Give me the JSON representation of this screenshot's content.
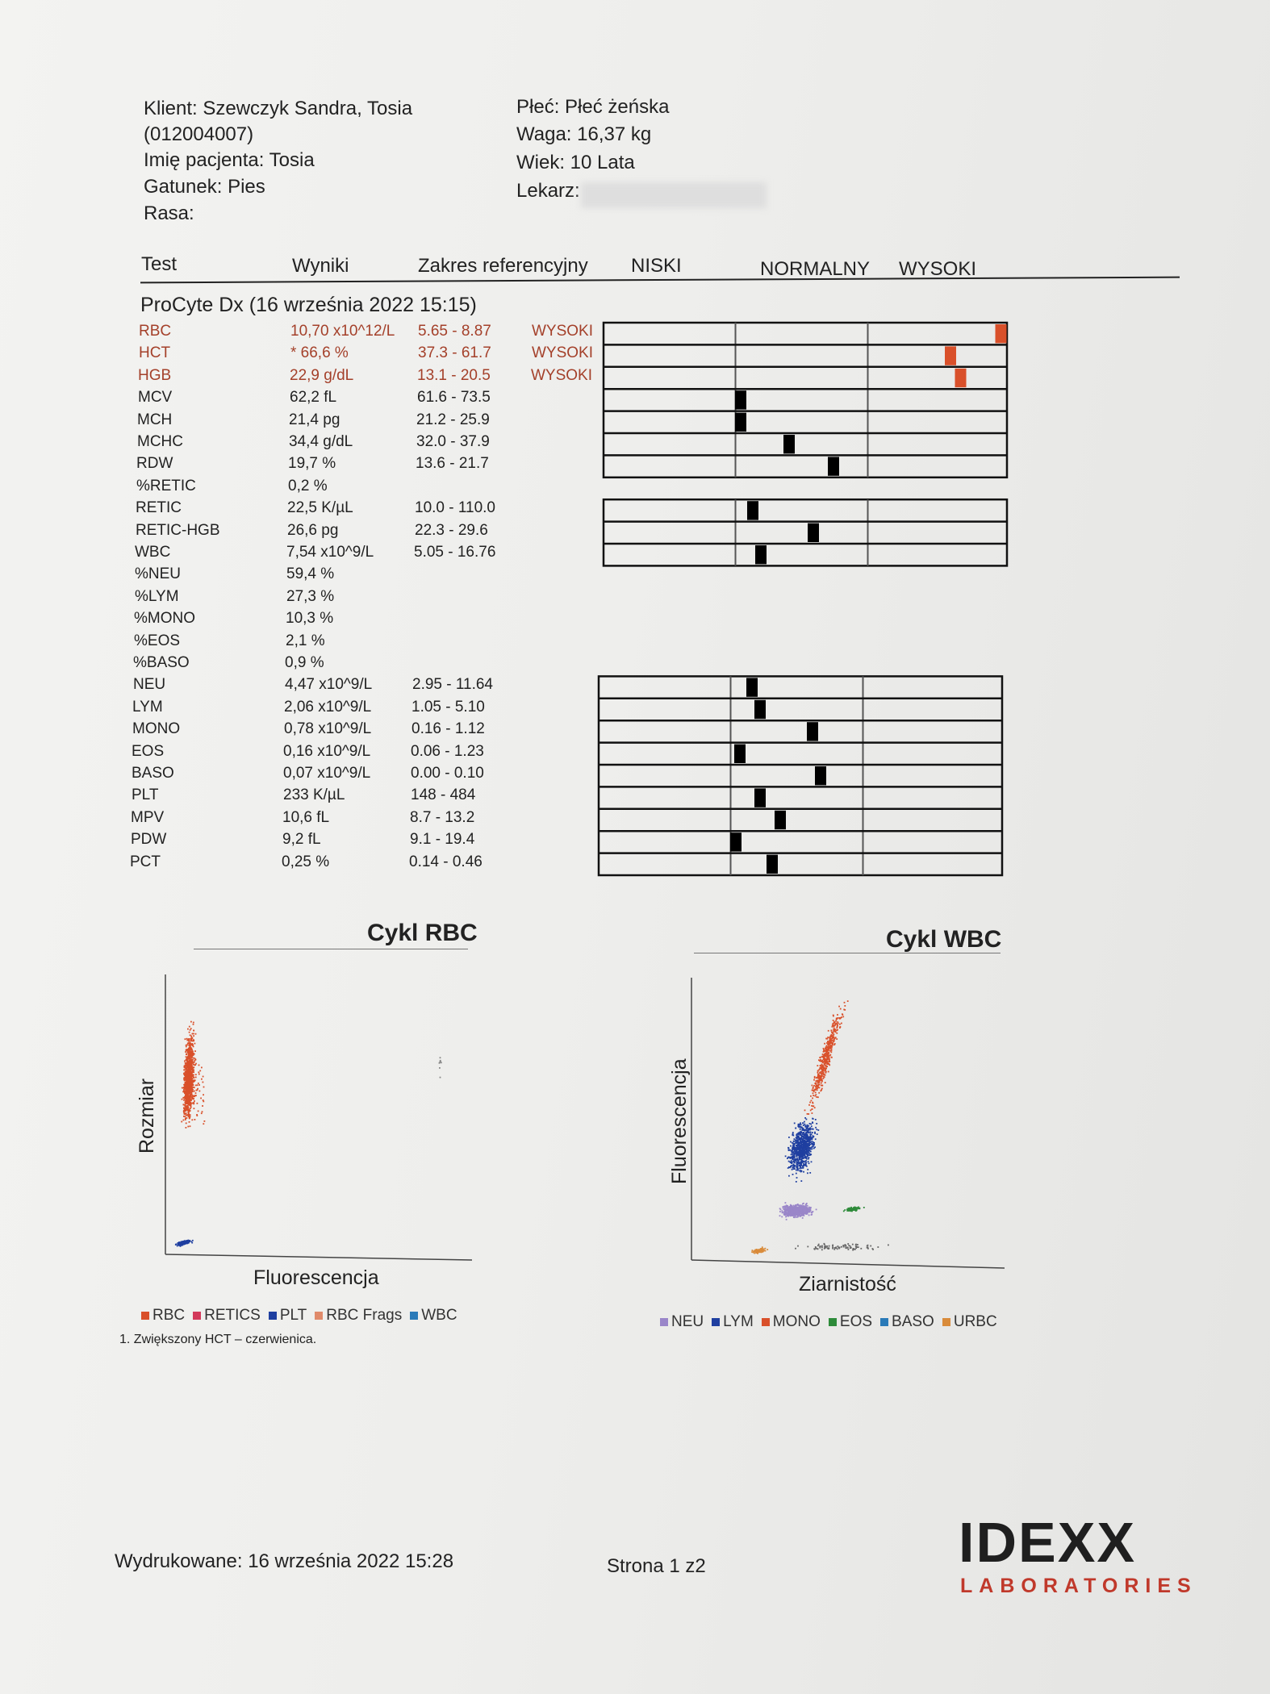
{
  "header": {
    "client": "Klient: Szewczyk Sandra, Tosia",
    "client_id": "(012004007)",
    "patient": "Imię pacjenta: Tosia",
    "species": "Gatunek: Pies",
    "breed": "Rasa:",
    "sex": "Płeć: Płeć żeńska",
    "weight": "Waga: 16,37 kg",
    "age": "Wiek: 10 Lata",
    "doctor": "Lekarz:"
  },
  "columns": {
    "test": "Test",
    "results": "Wyniki",
    "range": "Zakres referencyjny",
    "low": "NISKI",
    "normal": "NORMALNY",
    "high": "WYSOKI"
  },
  "section_title": "ProCyte Dx (16 września 2022 15:15)",
  "results": [
    {
      "test": "RBC",
      "value": "10,70 x10^12/L",
      "range": "5.65 - 8.87",
      "flag": "WYSOKI",
      "bar": 0.985
    },
    {
      "test": "HCT",
      "value": "* 66,6 %",
      "range": "37.3 - 61.7",
      "flag": "WYSOKI",
      "bar": 0.86
    },
    {
      "test": "HGB",
      "value": "22,9 g/dL",
      "range": "13.1 - 20.5",
      "flag": "WYSOKI",
      "bar": 0.885
    },
    {
      "test": "MCV",
      "value": "62,2 fL",
      "range": "61.6 - 73.5",
      "flag": "",
      "bar": 0.34
    },
    {
      "test": "MCH",
      "value": "21,4 pg",
      "range": "21.2 - 25.9",
      "flag": "",
      "bar": 0.34
    },
    {
      "test": "MCHC",
      "value": "34,4 g/dL",
      "range": "32.0 - 37.9",
      "flag": "",
      "bar": 0.46
    },
    {
      "test": "RDW",
      "value": "19,7 %",
      "range": "13.6 - 21.7",
      "flag": "",
      "bar": 0.57
    },
    {
      "test": "%RETIC",
      "value": "0,2 %",
      "range": "",
      "flag": "",
      "bar": null
    },
    {
      "test": "RETIC",
      "value": "22,5 K/µL",
      "range": "10.0 - 110.0",
      "flag": "",
      "bar": 0.37
    },
    {
      "test": "RETIC-HGB",
      "value": "26,6 pg",
      "range": "22.3 - 29.6",
      "flag": "",
      "bar": 0.52
    },
    {
      "test": "WBC",
      "value": "7,54 x10^9/L",
      "range": "5.05 - 16.76",
      "flag": "",
      "bar": 0.39
    },
    {
      "test": "%NEU",
      "value": "59,4 %",
      "range": "",
      "flag": "",
      "bar": null
    },
    {
      "test": "%LYM",
      "value": "27,3 %",
      "range": "",
      "flag": "",
      "bar": null
    },
    {
      "test": "%MONO",
      "value": "10,3 %",
      "range": "",
      "flag": "",
      "bar": null
    },
    {
      "test": "%EOS",
      "value": "2,1 %",
      "range": "",
      "flag": "",
      "bar": null
    },
    {
      "test": "%BASO",
      "value": "0,9 %",
      "range": "",
      "flag": "",
      "bar": null
    },
    {
      "test": "NEU",
      "value": "4,47 x10^9/L",
      "range": "2.95 - 11.64",
      "flag": "",
      "bar": 0.38
    },
    {
      "test": "LYM",
      "value": "2,06 x10^9/L",
      "range": "1.05 - 5.10",
      "flag": "",
      "bar": 0.4
    },
    {
      "test": "MONO",
      "value": "0,78 x10^9/L",
      "range": "0.16 - 1.12",
      "flag": "",
      "bar": 0.53
    },
    {
      "test": "EOS",
      "value": "0,16 x10^9/L",
      "range": "0.06 - 1.23",
      "flag": "",
      "bar": 0.35
    },
    {
      "test": "BASO",
      "value": "0,07 x10^9/L",
      "range": "0.00 - 0.10",
      "flag": "",
      "bar": 0.55
    },
    {
      "test": "PLT",
      "value": "233 K/µL",
      "range": "148 - 484",
      "flag": "",
      "bar": 0.4
    },
    {
      "test": "MPV",
      "value": "10,6 fL",
      "range": "8.7 - 13.2",
      "flag": "",
      "bar": 0.45
    },
    {
      "test": "PDW",
      "value": "9,2 fL",
      "range": "9.1 - 19.4",
      "flag": "",
      "bar": 0.34
    },
    {
      "test": "PCT",
      "value": "0,25 %",
      "range": "0.14 - 0.46",
      "flag": "",
      "bar": 0.43
    }
  ],
  "rbc_chart": {
    "title": "Cykl RBC",
    "xlabel": "Fluorescencja",
    "ylabel": "Rozmiar",
    "legend": [
      {
        "name": "RBC",
        "color": "#d9502a"
      },
      {
        "name": "RETICS",
        "color": "#d33a5b"
      },
      {
        "name": "PLT",
        "color": "#1f3fa0"
      },
      {
        "name": "RBC Frags",
        "color": "#e08a6a"
      },
      {
        "name": "WBC",
        "color": "#2a7ab8"
      }
    ]
  },
  "wbc_chart": {
    "title": "Cykl WBC",
    "xlabel": "Ziarnistość",
    "ylabel": "Fluorescencja",
    "legend": [
      {
        "name": "NEU",
        "color": "#9a86c9"
      },
      {
        "name": "LYM",
        "color": "#1f3fa0"
      },
      {
        "name": "MONO",
        "color": "#d9502a"
      },
      {
        "name": "EOS",
        "color": "#2e8b3a"
      },
      {
        "name": "BASO",
        "color": "#2a7ab8"
      },
      {
        "name": "URBC",
        "color": "#d98b3a"
      }
    ]
  },
  "note": "1. Zwiększony HCT – czerwienica.",
  "footer": {
    "printed": "Wydrukowane: 16 września 2022 15:28",
    "page": "Strona 1 z2"
  },
  "logo": {
    "top": "IDEXX",
    "bottom": "LABORATORIES"
  }
}
